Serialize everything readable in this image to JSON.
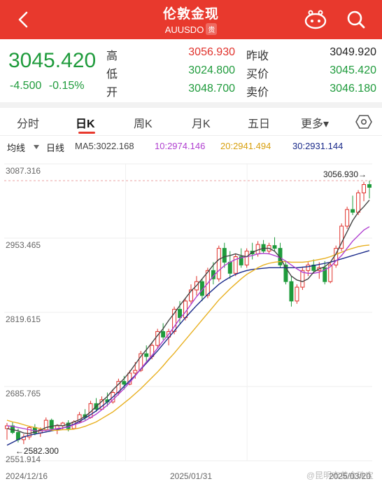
{
  "header": {
    "title": "伦敦金现",
    "symbol": "AUUSDO",
    "badge": "贵",
    "bg_color": "#e8392d"
  },
  "quote": {
    "price": "3045.420",
    "change": "-4.500",
    "change_pct": "-0.15%",
    "labels": {
      "high": "高",
      "low": "低",
      "open": "开",
      "prev_close": "昨收",
      "bid": "买价",
      "ask": "卖价"
    },
    "high": "3056.930",
    "low": "3024.800",
    "open": "3048.700",
    "prev_close": "3049.920",
    "bid": "3045.420",
    "ask": "3046.180"
  },
  "tabs": [
    {
      "label": "分时",
      "active": false
    },
    {
      "label": "日K",
      "active": true
    },
    {
      "label": "周K",
      "active": false
    },
    {
      "label": "月K",
      "active": false
    },
    {
      "label": "五日",
      "active": false
    },
    {
      "label": "更多▾",
      "active": false
    }
  ],
  "indicator": {
    "type": "均线",
    "period": "日线",
    "ma5": "MA5:3022.168",
    "ma10": "10:2974.146",
    "ma20": "20:2941.494",
    "ma30": "30:2931.144",
    "colors": {
      "ma5": "#444444",
      "ma10": "#b040d0",
      "ma20": "#e8b020",
      "ma30": "#1a2a8a"
    }
  },
  "chart_data": {
    "type": "candlestick",
    "y_axis_ticks": [
      "3087.316",
      "2953.465",
      "2819.615",
      "2685.765",
      "2551.914"
    ],
    "ylim": [
      2551.914,
      3087.316
    ],
    "x_axis_labels": [
      "2024/12/16",
      "2025/01/31",
      "2025/03/20"
    ],
    "max_marker": "3056.930→",
    "min_marker": "←2582.300",
    "up_color": "#e0302a",
    "down_color": "#1f9b3c",
    "candles": [
      [
        2610,
        2620,
        2590,
        2615
      ],
      [
        2615,
        2622,
        2600,
        2603
      ],
      [
        2603,
        2610,
        2585,
        2590
      ],
      [
        2590,
        2600,
        2582,
        2595
      ],
      [
        2595,
        2615,
        2590,
        2612
      ],
      [
        2612,
        2618,
        2598,
        2602
      ],
      [
        2602,
        2612,
        2595,
        2608
      ],
      [
        2608,
        2630,
        2605,
        2625
      ],
      [
        2625,
        2628,
        2605,
        2610
      ],
      [
        2610,
        2618,
        2600,
        2615
      ],
      [
        2615,
        2622,
        2608,
        2620
      ],
      [
        2620,
        2625,
        2605,
        2610
      ],
      [
        2610,
        2625,
        2608,
        2622
      ],
      [
        2622,
        2640,
        2620,
        2635
      ],
      [
        2635,
        2645,
        2625,
        2630
      ],
      [
        2630,
        2660,
        2628,
        2655
      ],
      [
        2655,
        2665,
        2640,
        2645
      ],
      [
        2645,
        2668,
        2643,
        2662
      ],
      [
        2662,
        2675,
        2650,
        2658
      ],
      [
        2658,
        2680,
        2655,
        2675
      ],
      [
        2675,
        2700,
        2670,
        2695
      ],
      [
        2695,
        2705,
        2680,
        2690
      ],
      [
        2690,
        2715,
        2688,
        2710
      ],
      [
        2710,
        2730,
        2700,
        2715
      ],
      [
        2715,
        2750,
        2712,
        2745
      ],
      [
        2745,
        2760,
        2730,
        2740
      ],
      [
        2740,
        2765,
        2735,
        2760
      ],
      [
        2760,
        2790,
        2755,
        2785
      ],
      [
        2785,
        2800,
        2770,
        2775
      ],
      [
        2775,
        2790,
        2760,
        2785
      ],
      [
        2785,
        2830,
        2780,
        2825
      ],
      [
        2825,
        2840,
        2800,
        2810
      ],
      [
        2810,
        2845,
        2805,
        2840
      ],
      [
        2840,
        2870,
        2835,
        2860
      ],
      [
        2860,
        2885,
        2850,
        2875
      ],
      [
        2875,
        2880,
        2840,
        2850
      ],
      [
        2850,
        2900,
        2845,
        2895
      ],
      [
        2895,
        2910,
        2870,
        2880
      ],
      [
        2880,
        2940,
        2875,
        2935
      ],
      [
        2935,
        2945,
        2900,
        2910
      ],
      [
        2910,
        2930,
        2880,
        2890
      ],
      [
        2890,
        2925,
        2885,
        2920
      ],
      [
        2920,
        2935,
        2900,
        2905
      ],
      [
        2905,
        2935,
        2900,
        2930
      ],
      [
        2930,
        2945,
        2915,
        2925
      ],
      [
        2925,
        2948,
        2920,
        2942
      ],
      [
        2942,
        2950,
        2925,
        2930
      ],
      [
        2930,
        2945,
        2925,
        2940
      ],
      [
        2940,
        2955,
        2930,
        2935
      ],
      [
        2935,
        2945,
        2900,
        2905
      ],
      [
        2905,
        2910,
        2870,
        2875
      ],
      [
        2875,
        2885,
        2830,
        2840
      ],
      [
        2840,
        2870,
        2835,
        2865
      ],
      [
        2865,
        2900,
        2860,
        2895
      ],
      [
        2895,
        2910,
        2885,
        2905
      ],
      [
        2905,
        2915,
        2890,
        2895
      ],
      [
        2895,
        2910,
        2880,
        2900
      ],
      [
        2900,
        2912,
        2870,
        2875
      ],
      [
        2875,
        2910,
        2872,
        2905
      ],
      [
        2905,
        2940,
        2900,
        2935
      ],
      [
        2935,
        2980,
        2930,
        2975
      ],
      [
        2975,
        3010,
        2970,
        3005
      ],
      [
        3005,
        3030,
        2995,
        3000
      ],
      [
        3000,
        3040,
        2995,
        3035
      ],
      [
        3035,
        3055,
        3020,
        3050
      ],
      [
        3050,
        3057,
        3025,
        3045
      ]
    ],
    "ma5": [
      2610,
      2608,
      2606,
      2602,
      2601,
      2604,
      2607,
      2612,
      2614,
      2616,
      2615,
      2618,
      2622,
      2626,
      2632,
      2640,
      2650,
      2659,
      2668,
      2680,
      2690,
      2700,
      2712,
      2726,
      2740,
      2752,
      2765,
      2778,
      2790,
      2805,
      2818,
      2832,
      2845,
      2858,
      2868,
      2880,
      2892,
      2905,
      2915,
      2920,
      2922,
      2925,
      2922,
      2920,
      2928,
      2932,
      2935,
      2935,
      2930,
      2918,
      2900,
      2885,
      2878,
      2875,
      2880,
      2892,
      2898,
      2902,
      2910,
      2925,
      2945,
      2965,
      2985,
      3000,
      3010,
      3022
    ],
    "ma10": [
      2615,
      2614,
      2612,
      2610,
      2608,
      2606,
      2606,
      2607,
      2608,
      2610,
      2611,
      2613,
      2617,
      2620,
      2624,
      2630,
      2636,
      2644,
      2652,
      2662,
      2672,
      2682,
      2693,
      2705,
      2718,
      2730,
      2742,
      2755,
      2768,
      2780,
      2794,
      2808,
      2820,
      2834,
      2848,
      2860,
      2872,
      2885,
      2895,
      2904,
      2910,
      2915,
      2918,
      2920,
      2922,
      2925,
      2926,
      2925,
      2922,
      2918,
      2912,
      2905,
      2898,
      2892,
      2890,
      2890,
      2892,
      2896,
      2902,
      2912,
      2922,
      2935,
      2948,
      2958,
      2968,
      2974
    ],
    "ma20": [
      2625,
      2622,
      2620,
      2617,
      2614,
      2612,
      2610,
      2608,
      2607,
      2607,
      2608,
      2608,
      2609,
      2611,
      2614,
      2618,
      2622,
      2628,
      2634,
      2640,
      2648,
      2656,
      2664,
      2673,
      2682,
      2692,
      2702,
      2712,
      2723,
      2735,
      2746,
      2758,
      2770,
      2782,
      2794,
      2806,
      2818,
      2830,
      2842,
      2852,
      2862,
      2871,
      2880,
      2888,
      2894,
      2900,
      2905,
      2908,
      2910,
      2911,
      2911,
      2910,
      2910,
      2910,
      2911,
      2913,
      2915,
      2917,
      2920,
      2924,
      2928,
      2932,
      2935,
      2938,
      2940,
      2941
    ],
    "ma30": [
      2580,
      2585,
      2590,
      2595,
      2598,
      2600,
      2602,
      2604,
      2606,
      2608,
      2611,
      2614,
      2618,
      2623,
      2629,
      2635,
      2642,
      2650,
      2658,
      2667,
      2676,
      2686,
      2696,
      2706,
      2717,
      2728,
      2739,
      2750,
      2762,
      2774,
      2786,
      2798,
      2810,
      2821,
      2832,
      2842,
      2852,
      2861,
      2870,
      2877,
      2883,
      2888,
      2892,
      2895,
      2897,
      2898,
      2899,
      2900,
      2900,
      2900,
      2900,
      2900,
      2900,
      2901,
      2902,
      2904,
      2906,
      2908,
      2910,
      2913,
      2916,
      2919,
      2922,
      2925,
      2928,
      2931
    ]
  },
  "watermark": "@昆明市黄金珠宝"
}
